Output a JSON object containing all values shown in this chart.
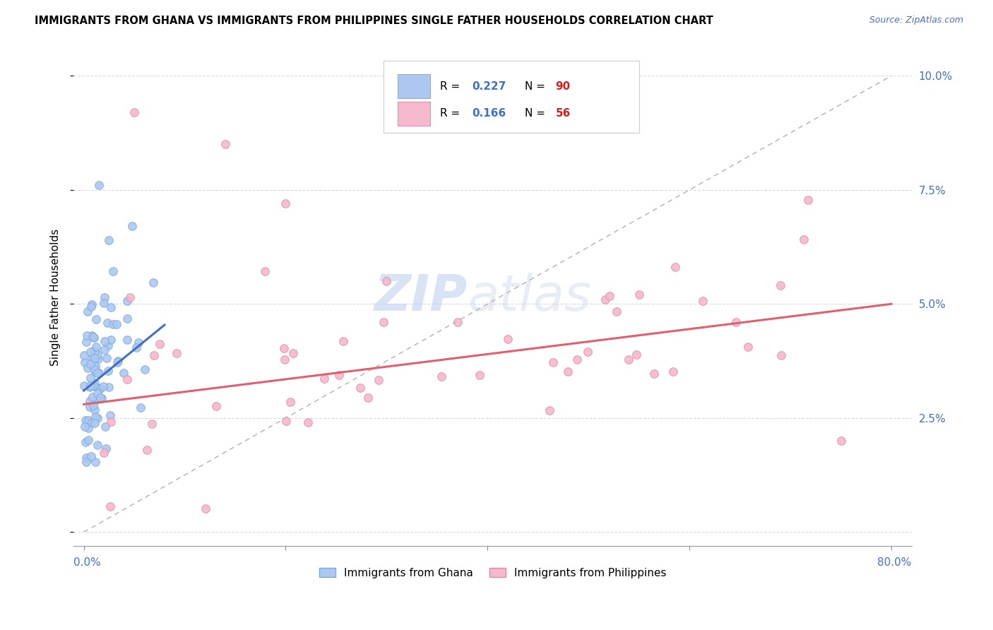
{
  "title": "IMMIGRANTS FROM GHANA VS IMMIGRANTS FROM PHILIPPINES SINGLE FATHER HOUSEHOLDS CORRELATION CHART",
  "source": "Source: ZipAtlas.com",
  "ylabel": "Single Father Households",
  "ghana_color": "#adc8f0",
  "ghana_edge_color": "#7aaade",
  "philippines_color": "#f5b8cc",
  "philippines_edge_color": "#e08aaa",
  "ghana_R": 0.227,
  "ghana_N": 90,
  "philippines_R": 0.166,
  "philippines_N": 56,
  "trend_ghana_color": "#4470c4",
  "trend_philippines_color": "#e06070",
  "diagonal_color": "#b0b0b0",
  "watermark_zip": "ZIP",
  "watermark_atlas": "atlas",
  "legend_R_color": "#4470c4",
  "legend_N_color": "#cc2222",
  "yticks": [
    0.0,
    0.025,
    0.05,
    0.075,
    0.1
  ],
  "ytick_labels": [
    "",
    "2.5%",
    "5.0%",
    "7.5%",
    "10.0%"
  ],
  "xlim": [
    0,
    80
  ],
  "ylim": [
    -0.003,
    0.106
  ]
}
